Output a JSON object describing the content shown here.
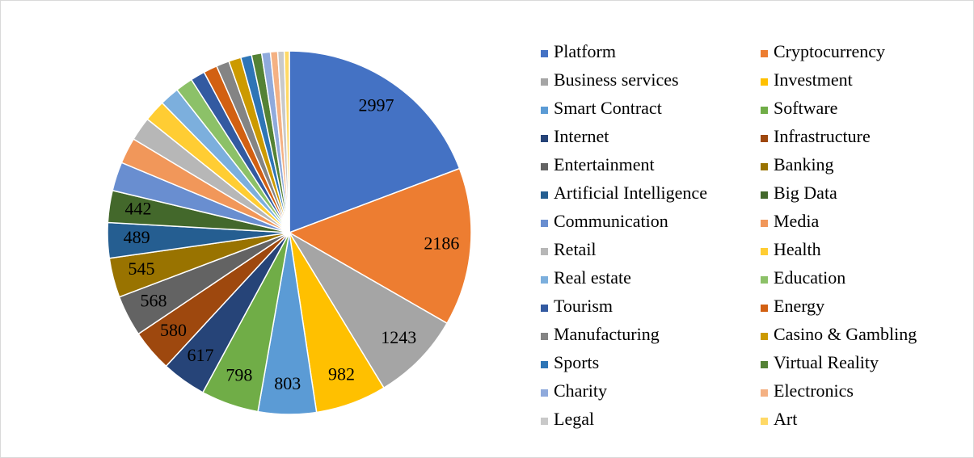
{
  "chart_data": {
    "type": "pie",
    "categories": [
      "Platform",
      "Cryptocurrency",
      "Business services",
      "Investment",
      "Smart Contract",
      "Software",
      "Internet",
      "Infrastructure",
      "Entertainment",
      "Banking",
      "Artificial Intelligence",
      "Big Data",
      "Communication",
      "Media",
      "Retail",
      "Health",
      "Real estate",
      "Education",
      "Tourism",
      "Energy",
      "Manufacturing",
      "Casino & Gambling",
      "Sports",
      "Virtual Reality",
      "Charity",
      "Electronics",
      "Legal",
      "Art"
    ],
    "values": [
      2997,
      2186,
      1243,
      982,
      803,
      798,
      617,
      580,
      568,
      545,
      489,
      442,
      400,
      360,
      330,
      300,
      270,
      240,
      200,
      190,
      180,
      170,
      150,
      140,
      120,
      100,
      90,
      70
    ],
    "value_labels": [
      "2997",
      "2186",
      "1243",
      "982",
      "803",
      "798",
      "617",
      "580",
      "568",
      "545",
      "489",
      "442",
      null,
      null,
      null,
      null,
      null,
      null,
      null,
      null,
      null,
      null,
      null,
      null,
      null,
      null,
      null,
      null
    ],
    "colors": [
      "#4472c4",
      "#ed7d31",
      "#a5a5a5",
      "#ffc000",
      "#5b9bd5",
      "#70ad47",
      "#264478",
      "#9e480e",
      "#636363",
      "#997300",
      "#255e91",
      "#43682b",
      "#698ed0",
      "#f1975a",
      "#b7b7b7",
      "#ffcd33",
      "#7cafdd",
      "#8cc168",
      "#335aa1",
      "#d26012",
      "#848484",
      "#cc9a00",
      "#2e75b6",
      "#548235",
      "#8faadc",
      "#f4b183",
      "#c9c9c9",
      "#ffd966"
    ],
    "legend": "right"
  }
}
